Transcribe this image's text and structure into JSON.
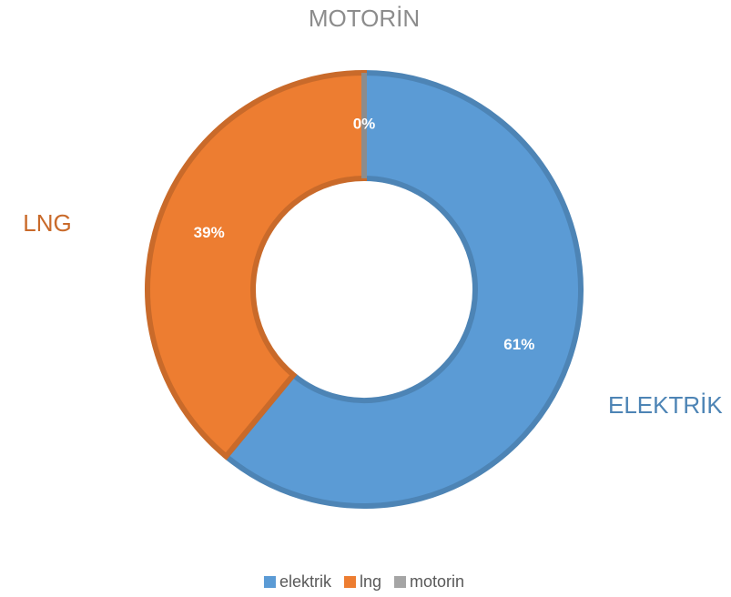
{
  "chart_data": {
    "type": "donut",
    "categories": [
      "elektrik",
      "lng",
      "motorin"
    ],
    "values": [
      61,
      39,
      0
    ],
    "value_labels": [
      "61%",
      "39%",
      "0%"
    ],
    "colors": [
      "#5b9bd5",
      "#ed7d31",
      "#a5a5a5"
    ],
    "annotations": [
      "ELEKTRİK",
      "LNG",
      "MOTORİN"
    ],
    "legend": "bottom"
  }
}
